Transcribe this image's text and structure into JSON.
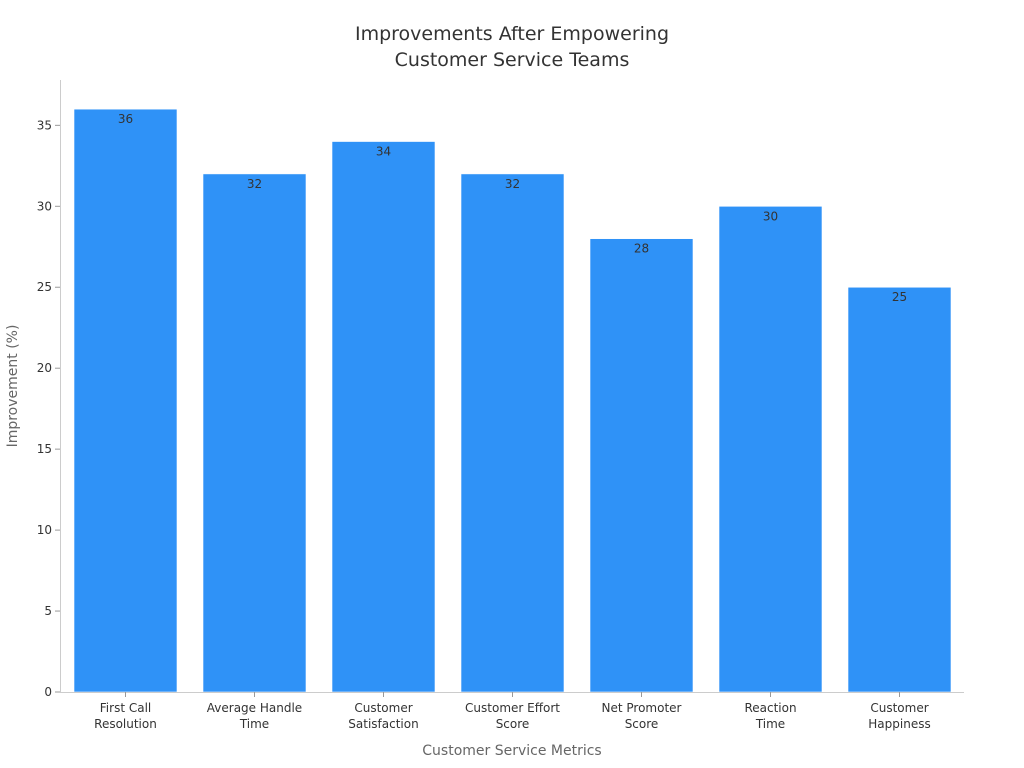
{
  "chart_data": {
    "type": "bar",
    "title_lines": [
      "Improvements After Empowering",
      "Customer Service Teams"
    ],
    "xlabel": "Customer Service Metrics",
    "ylabel": "Improvement (%)",
    "categories": [
      [
        "First Call",
        "Resolution"
      ],
      [
        "Average Handle",
        "Time"
      ],
      [
        "Customer",
        "Satisfaction"
      ],
      [
        "Customer Effort",
        "Score"
      ],
      [
        "Net Promoter",
        "Score"
      ],
      [
        "Reaction",
        "Time"
      ],
      [
        "Customer",
        "Happiness"
      ]
    ],
    "values": [
      36,
      32,
      34,
      32,
      28,
      30,
      25
    ],
    "ylim": [
      0,
      37.8
    ],
    "yticks": [
      0,
      5,
      10,
      15,
      20,
      25,
      30,
      35
    ],
    "grid": false,
    "bar_color": "#2f92f7"
  }
}
